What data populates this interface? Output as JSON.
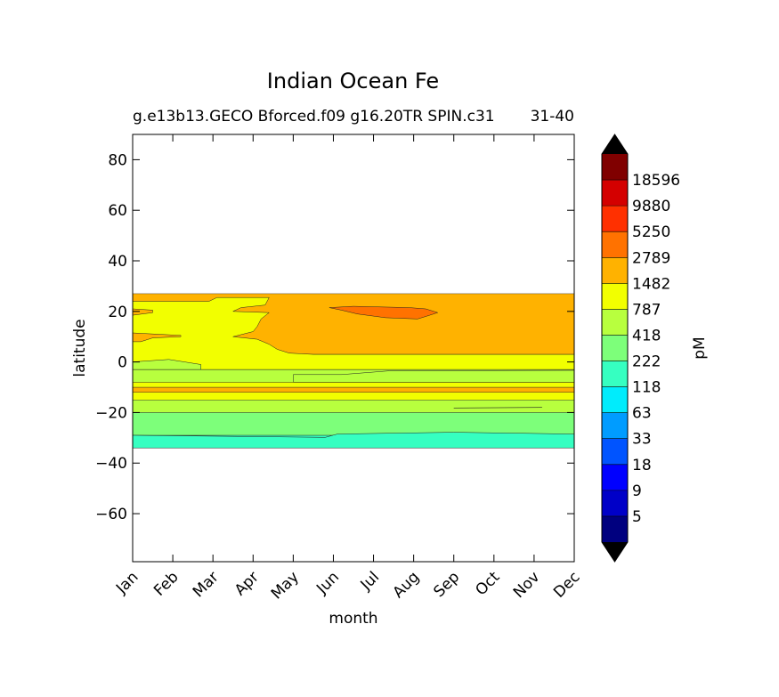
{
  "chart_data": {
    "type": "heatmap",
    "plot_style": "filled contour",
    "title": "Indian Ocean Fe",
    "subtitle_left": "g.e13b13.GECO Bforced.f09 g16.20TR SPIN.c31",
    "subtitle_right": "31-40",
    "xlabel": "month",
    "ylabel": "latitude",
    "x_ticks": [
      "Jan",
      "Feb",
      "Mar",
      "Apr",
      "May",
      "Jun",
      "Jul",
      "Aug",
      "Sep",
      "Oct",
      "Nov",
      "Dec"
    ],
    "y_ticks": [
      80,
      60,
      40,
      20,
      0,
      -20,
      -40,
      -60
    ],
    "ylim": [
      -79,
      90
    ],
    "data_lat_range": [
      -34,
      27
    ],
    "colorbar": {
      "label": "pM",
      "extend": "both",
      "levels": [
        5,
        9,
        18,
        33,
        63,
        118,
        222,
        418,
        787,
        1482,
        2789,
        5250,
        9880,
        18596
      ],
      "colors": [
        "#00007f",
        "#0000c8",
        "#0000ff",
        "#0054ff",
        "#009cff",
        "#00ecfc",
        "#36ffc1",
        "#7dff7a",
        "#b8ff3e",
        "#f2ff00",
        "#ffb200",
        "#ff7200",
        "#ff3000",
        "#d40000",
        "#800000"
      ],
      "under_color": "#000000",
      "over_color": "#000000"
    },
    "bands": [
      {
        "lat_min": -34,
        "lat_max": -29,
        "value_class": "118-222",
        "color": "#36ffc1"
      },
      {
        "lat_min": -29,
        "lat_max": -20,
        "value_class": "222-418",
        "color": "#7dff7a"
      },
      {
        "lat_min": -20,
        "lat_max": -15,
        "value_class": "418-787",
        "color": "#b8ff3e"
      },
      {
        "lat_min": -15,
        "lat_max": -12,
        "value_class": "787-1482",
        "color": "#f2ff00"
      },
      {
        "lat_min": -12,
        "lat_max": -10,
        "value_class": "1482-2789",
        "color": "#ffb200"
      },
      {
        "lat_min": -10,
        "lat_max": -8,
        "value_class": "787-1482",
        "color": "#f2ff00"
      },
      {
        "lat_min": -8,
        "lat_max": -3,
        "value_class": "418-787",
        "color": "#b8ff3e"
      },
      {
        "lat_min": -3,
        "lat_max": 3,
        "value_class": "787-1482",
        "color": "#f2ff00"
      },
      {
        "lat_min": 3,
        "lat_max": 27,
        "value_class": "1482-2789",
        "color": "#ffb200"
      }
    ],
    "features": [
      {
        "desc": "787-1482 region extending north in Jan-May",
        "month_range": [
          "Jan",
          "May"
        ],
        "lat_range": [
          -3,
          25
        ],
        "color": "#f2ff00"
      },
      {
        "desc": "2789-5250 patch",
        "month_range": [
          "Jun",
          "Aug"
        ],
        "lat_range": [
          17,
          21
        ],
        "color": "#ff7200"
      }
    ]
  }
}
